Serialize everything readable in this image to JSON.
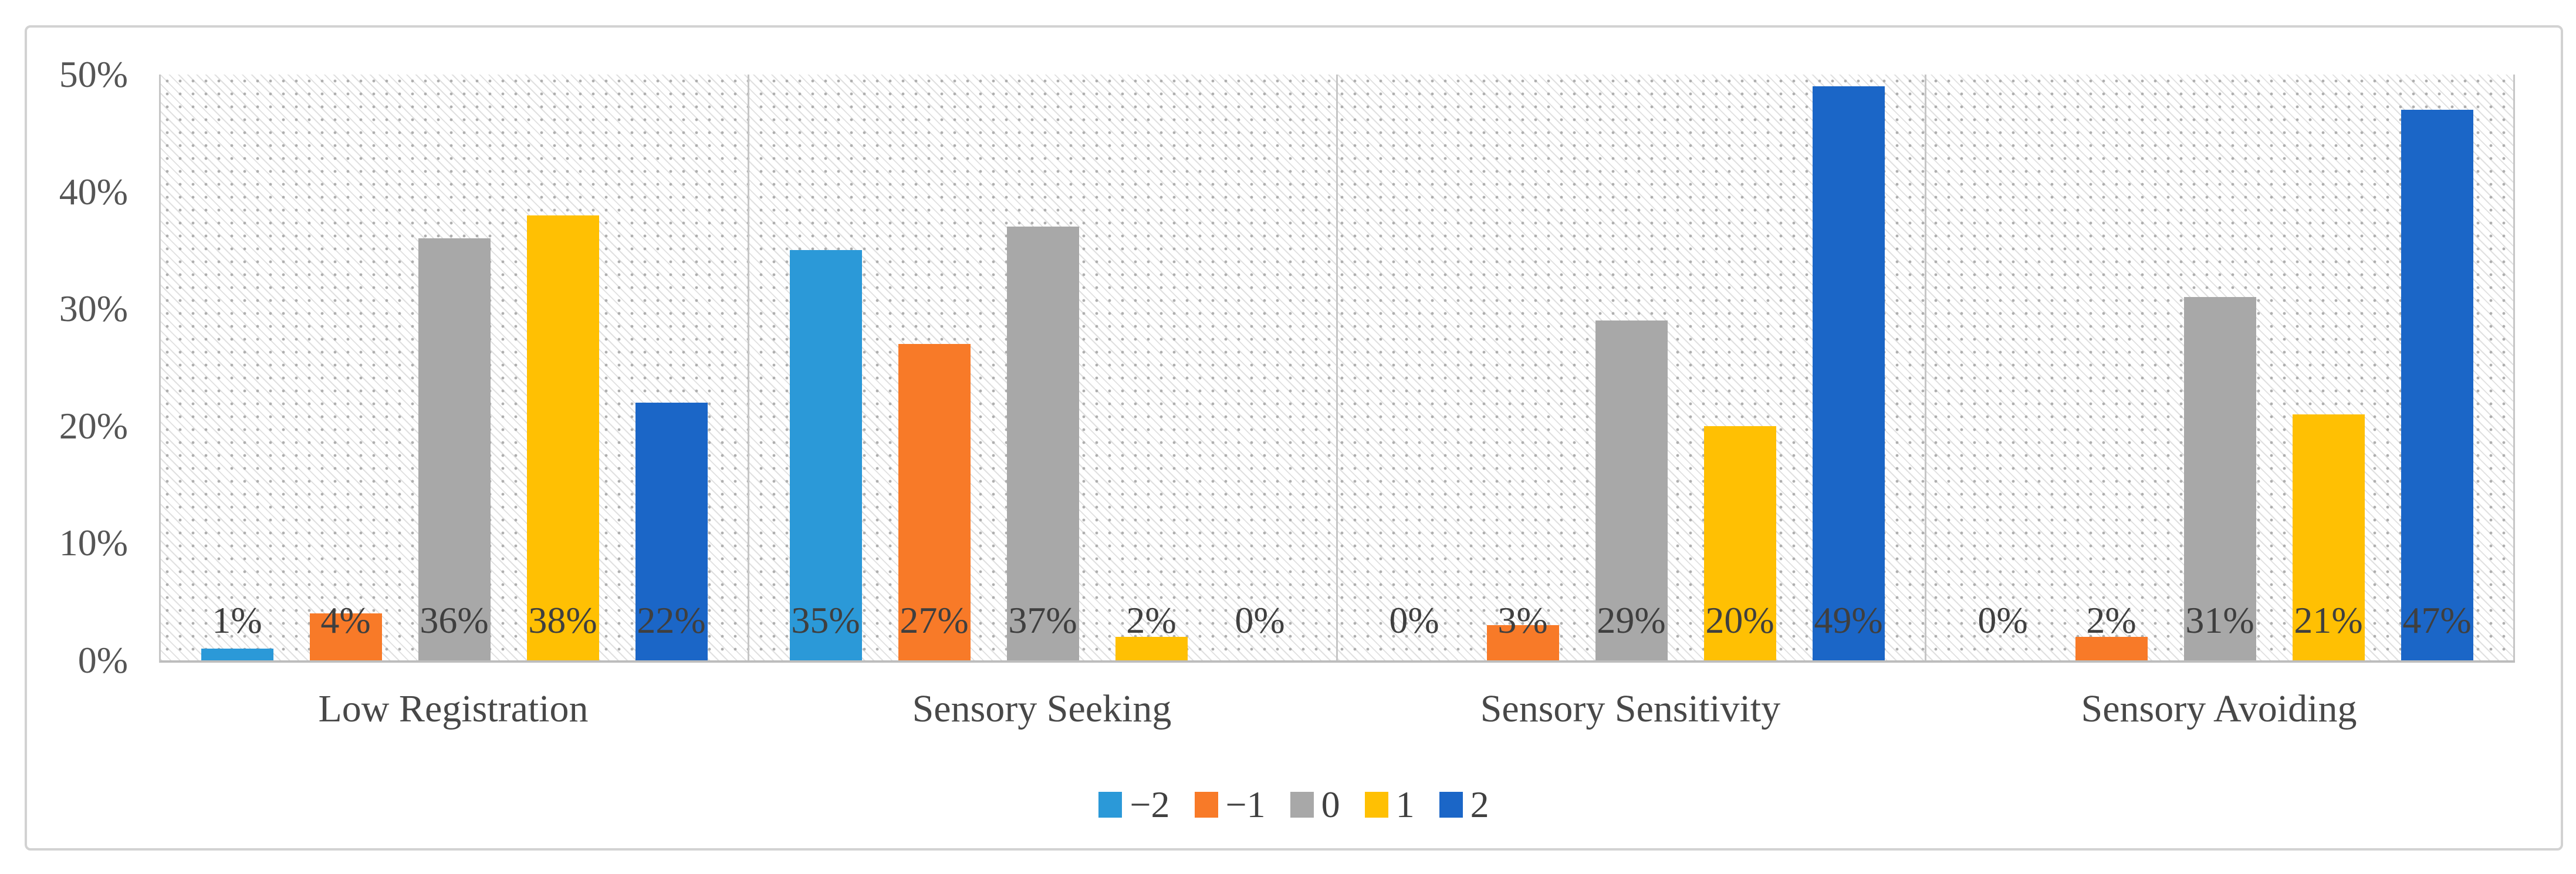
{
  "chart_data": {
    "type": "bar",
    "title": "",
    "xlabel": "",
    "ylabel": "",
    "categories": [
      "Low Registration",
      "Sensory Seeking",
      "Sensory Sensitivity",
      "Sensory Avoiding"
    ],
    "series": [
      {
        "name": "−2",
        "color": "#2B99D8",
        "values": [
          1,
          35,
          0,
          0
        ],
        "labels": [
          "1%",
          "35%",
          "0%",
          "0%"
        ]
      },
      {
        "name": "−1",
        "color": "#F87A28",
        "values": [
          4,
          27,
          3,
          2
        ],
        "labels": [
          "4%",
          "27%",
          "3%",
          "2%"
        ]
      },
      {
        "name": "0",
        "color": "#A8A8A8",
        "values": [
          36,
          37,
          29,
          31
        ],
        "labels": [
          "36%",
          "37%",
          "29%",
          "31%"
        ]
      },
      {
        "name": "1",
        "color": "#FFC003",
        "values": [
          38,
          2,
          20,
          21
        ],
        "labels": [
          "38%",
          "2%",
          "20%",
          "21%"
        ]
      },
      {
        "name": "2",
        "color": "#1B66C7",
        "values": [
          22,
          0,
          49,
          47
        ],
        "labels": [
          "22%",
          "0%",
          "49%",
          "47%"
        ]
      }
    ],
    "ylim": [
      0,
      50
    ],
    "yticks": [
      {
        "value": 0,
        "label": "0%"
      },
      {
        "value": 10,
        "label": "10%"
      },
      {
        "value": 20,
        "label": "20%"
      },
      {
        "value": 30,
        "label": "30%"
      },
      {
        "value": 40,
        "label": "40%"
      },
      {
        "value": 50,
        "label": "50%"
      }
    ],
    "grid": false,
    "legend_position": "bottom",
    "plot_background": "light-diagonal-hatch",
    "panel_dividers": true
  },
  "legend": {
    "items": [
      {
        "label": "−2",
        "color": "#2B99D8"
      },
      {
        "label": "−1",
        "color": "#F87A28"
      },
      {
        "label": "0",
        "color": "#A8A8A8"
      },
      {
        "label": "1",
        "color": "#FFC003"
      },
      {
        "label": "2",
        "color": "#1B66C7"
      }
    ]
  },
  "frame": {
    "border_color": "#d2d2d2",
    "axis_color": "#bdbdbd",
    "divider_color": "#c6c6c6"
  }
}
